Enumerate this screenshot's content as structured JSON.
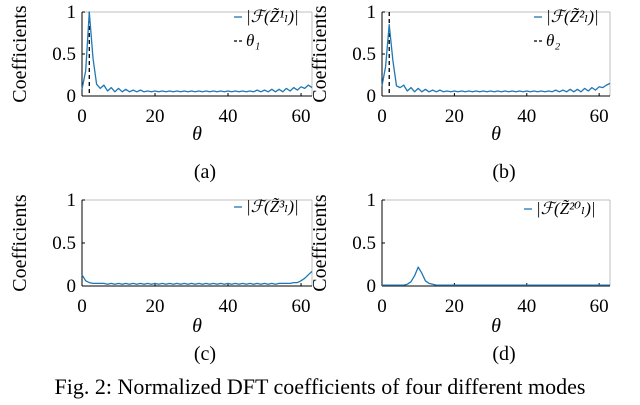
{
  "caption": "Fig. 2: Normalized DFT coefficients of four different modes",
  "chart_data": [
    {
      "type": "line",
      "panel_label": "(a)",
      "xlabel": "θ",
      "ylabel": "Coefficients",
      "xlim": [
        0,
        63
      ],
      "ylim": [
        0,
        1
      ],
      "xticks": [
        0,
        20,
        40,
        60
      ],
      "yticks": [
        0,
        0.5,
        1
      ],
      "ytick_labels": [
        "0",
        "0.5",
        "1"
      ],
      "legend": [
        "|ℱ(Z̃¹ₗ)|",
        "θ₁"
      ],
      "series": [
        {
          "name": "|ℱ(Z̃¹ₗ)|",
          "x": [
            0,
            1,
            2,
            3,
            4,
            5,
            6,
            7,
            8,
            9,
            10,
            11,
            12,
            13,
            14,
            15,
            16,
            17,
            18,
            19,
            20,
            21,
            22,
            23,
            24,
            25,
            26,
            27,
            28,
            29,
            30,
            31,
            32,
            33,
            34,
            35,
            36,
            37,
            38,
            39,
            40,
            41,
            42,
            43,
            44,
            45,
            46,
            47,
            48,
            49,
            50,
            51,
            52,
            53,
            54,
            55,
            56,
            57,
            58,
            59,
            60,
            61,
            62,
            63
          ],
          "y": [
            0.08,
            0.3,
            1.0,
            0.45,
            0.14,
            0.09,
            0.13,
            0.06,
            0.1,
            0.05,
            0.09,
            0.05,
            0.08,
            0.05,
            0.07,
            0.05,
            0.07,
            0.05,
            0.06,
            0.05,
            0.06,
            0.05,
            0.06,
            0.05,
            0.06,
            0.05,
            0.06,
            0.05,
            0.06,
            0.05,
            0.06,
            0.05,
            0.06,
            0.05,
            0.06,
            0.05,
            0.06,
            0.05,
            0.06,
            0.05,
            0.06,
            0.05,
            0.06,
            0.05,
            0.06,
            0.05,
            0.06,
            0.05,
            0.07,
            0.05,
            0.07,
            0.05,
            0.08,
            0.05,
            0.08,
            0.05,
            0.09,
            0.06,
            0.1,
            0.07,
            0.11,
            0.09,
            0.13,
            0.1
          ]
        }
      ],
      "threshold": {
        "name": "θ₁",
        "x": 2
      }
    },
    {
      "type": "line",
      "panel_label": "(b)",
      "xlabel": "θ",
      "ylabel": "Coefficients",
      "xlim": [
        0,
        63
      ],
      "ylim": [
        0,
        1
      ],
      "xticks": [
        0,
        20,
        40,
        60
      ],
      "yticks": [
        0,
        0.5,
        1
      ],
      "ytick_labels": [
        "0",
        "0.5",
        "1"
      ],
      "legend": [
        "|ℱ(Z̃²ₗ)|",
        "θ₂"
      ],
      "series": [
        {
          "name": "|ℱ(Z̃²ₗ)|",
          "x": [
            0,
            1,
            2,
            3,
            4,
            5,
            6,
            7,
            8,
            9,
            10,
            11,
            12,
            13,
            14,
            15,
            16,
            17,
            18,
            19,
            20,
            21,
            22,
            23,
            24,
            25,
            26,
            27,
            28,
            29,
            30,
            31,
            32,
            33,
            34,
            35,
            36,
            37,
            38,
            39,
            40,
            41,
            42,
            43,
            44,
            45,
            46,
            47,
            48,
            49,
            50,
            51,
            52,
            53,
            54,
            55,
            56,
            57,
            58,
            59,
            60,
            61,
            62,
            63
          ],
          "y": [
            0.12,
            0.35,
            0.85,
            0.42,
            0.12,
            0.1,
            0.13,
            0.06,
            0.1,
            0.05,
            0.09,
            0.05,
            0.08,
            0.05,
            0.07,
            0.05,
            0.07,
            0.05,
            0.06,
            0.05,
            0.06,
            0.05,
            0.06,
            0.05,
            0.06,
            0.05,
            0.06,
            0.05,
            0.06,
            0.05,
            0.06,
            0.05,
            0.06,
            0.05,
            0.06,
            0.05,
            0.06,
            0.05,
            0.06,
            0.05,
            0.06,
            0.05,
            0.06,
            0.05,
            0.06,
            0.05,
            0.06,
            0.05,
            0.07,
            0.05,
            0.07,
            0.05,
            0.08,
            0.05,
            0.08,
            0.05,
            0.09,
            0.06,
            0.1,
            0.07,
            0.11,
            0.1,
            0.13,
            0.15
          ]
        }
      ],
      "threshold": {
        "name": "θ₂",
        "x": 2
      }
    },
    {
      "type": "line",
      "panel_label": "(c)",
      "xlabel": "θ",
      "ylabel": "Coefficients",
      "xlim": [
        0,
        63
      ],
      "ylim": [
        0,
        1
      ],
      "xticks": [
        0,
        20,
        40,
        60
      ],
      "yticks": [
        0,
        0.5,
        1
      ],
      "ytick_labels": [
        "0",
        "0.5",
        "1"
      ],
      "legend": [
        "|ℱ(Z̃³ₗ)|"
      ],
      "series": [
        {
          "name": "|ℱ(Z̃³ₗ)|",
          "x": [
            0,
            1,
            2,
            3,
            4,
            5,
            6,
            7,
            8,
            9,
            10,
            11,
            12,
            13,
            14,
            15,
            16,
            17,
            18,
            19,
            20,
            21,
            22,
            23,
            24,
            25,
            26,
            27,
            28,
            29,
            30,
            31,
            32,
            33,
            34,
            35,
            36,
            37,
            38,
            39,
            40,
            41,
            42,
            43,
            44,
            45,
            46,
            47,
            48,
            49,
            50,
            51,
            52,
            53,
            54,
            55,
            56,
            57,
            58,
            59,
            60,
            61,
            62,
            63
          ],
          "y": [
            0.13,
            0.06,
            0.04,
            0.03,
            0.03,
            0.03,
            0.03,
            0.02,
            0.03,
            0.02,
            0.03,
            0.02,
            0.03,
            0.02,
            0.03,
            0.02,
            0.03,
            0.02,
            0.03,
            0.02,
            0.03,
            0.02,
            0.03,
            0.02,
            0.03,
            0.02,
            0.03,
            0.02,
            0.03,
            0.02,
            0.03,
            0.02,
            0.03,
            0.02,
            0.03,
            0.02,
            0.03,
            0.02,
            0.03,
            0.02,
            0.03,
            0.02,
            0.03,
            0.02,
            0.03,
            0.02,
            0.03,
            0.02,
            0.03,
            0.02,
            0.03,
            0.02,
            0.03,
            0.02,
            0.03,
            0.03,
            0.03,
            0.03,
            0.04,
            0.04,
            0.06,
            0.09,
            0.13,
            0.17
          ]
        }
      ]
    },
    {
      "type": "line",
      "panel_label": "(d)",
      "xlabel": "θ",
      "ylabel": "Coefficients",
      "xlim": [
        0,
        63
      ],
      "ylim": [
        0,
        1
      ],
      "xticks": [
        0,
        20,
        40,
        60
      ],
      "yticks": [
        0,
        0.5,
        1
      ],
      "ytick_labels": [
        "0",
        "0.5",
        "1"
      ],
      "legend": [
        "|ℱ(Z̃²⁰ₗ)|"
      ],
      "series": [
        {
          "name": "|ℱ(Z̃²⁰ₗ)|",
          "x": [
            0,
            1,
            2,
            3,
            4,
            5,
            6,
            7,
            8,
            9,
            10,
            11,
            12,
            13,
            14,
            15,
            16,
            17,
            18,
            19,
            20,
            21,
            22,
            23,
            24,
            25,
            26,
            27,
            28,
            29,
            30,
            31,
            32,
            33,
            34,
            35,
            36,
            37,
            38,
            39,
            40,
            41,
            42,
            43,
            44,
            45,
            46,
            47,
            48,
            49,
            50,
            51,
            52,
            53,
            54,
            55,
            56,
            57,
            58,
            59,
            60,
            61,
            62,
            63
          ],
          "y": [
            0.01,
            0.01,
            0.01,
            0.01,
            0.01,
            0.01,
            0.01,
            0.02,
            0.05,
            0.12,
            0.22,
            0.15,
            0.06,
            0.03,
            0.02,
            0.01,
            0.01,
            0.01,
            0.01,
            0.01,
            0.01,
            0.01,
            0.01,
            0.01,
            0.01,
            0.01,
            0.01,
            0.01,
            0.01,
            0.01,
            0.01,
            0.01,
            0.01,
            0.01,
            0.01,
            0.01,
            0.01,
            0.01,
            0.01,
            0.01,
            0.01,
            0.01,
            0.01,
            0.01,
            0.01,
            0.01,
            0.01,
            0.01,
            0.01,
            0.01,
            0.01,
            0.01,
            0.01,
            0.01,
            0.01,
            0.01,
            0.01,
            0.01,
            0.01,
            0.01,
            0.01,
            0.01,
            0.01,
            0.01
          ]
        }
      ]
    }
  ],
  "colors": {
    "series": "#1f77b4",
    "threshold": "#000000",
    "axis": "#000000",
    "frame": "#bfbfbf"
  }
}
